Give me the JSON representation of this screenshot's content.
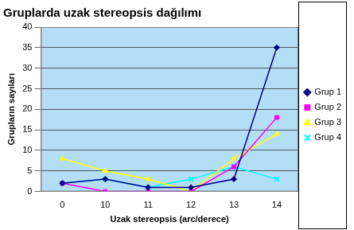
{
  "chart_data": {
    "type": "line",
    "title": "Gruplarda uzak stereopsis dağılımı",
    "x_label": "Uzak stereopsis (arc/derece)",
    "y_label": "Grupların sayıları",
    "categories": [
      "0",
      "10",
      "11",
      "12",
      "13",
      "14"
    ],
    "series": [
      {
        "name": "Grup 1",
        "color": "#000080",
        "marker": "diamond",
        "values": [
          2,
          3,
          1,
          1,
          3,
          35
        ]
      },
      {
        "name": "Grup 2",
        "color": "#ff00ff",
        "marker": "square",
        "values": [
          2,
          0,
          0,
          0,
          6,
          18
        ]
      },
      {
        "name": "Grup 3",
        "color": "#ffff00",
        "marker": "triangle",
        "values": [
          8,
          5,
          3,
          0,
          8,
          14
        ]
      },
      {
        "name": "Grup 4",
        "color": "#00ffff",
        "marker": "x",
        "values": [
          2,
          3,
          1,
          3,
          6,
          3
        ]
      }
    ],
    "ylim": [
      0,
      40
    ],
    "yticks": [
      0,
      5,
      10,
      15,
      20,
      25,
      30,
      35,
      40
    ],
    "grid": true,
    "legend": "right"
  }
}
